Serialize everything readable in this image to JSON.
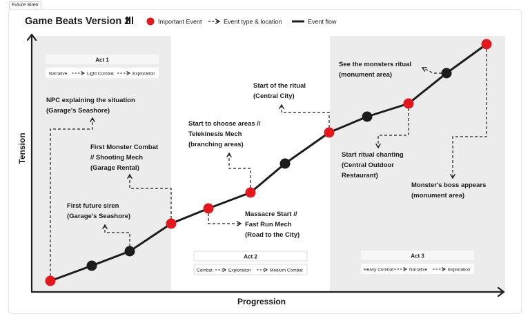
{
  "frame_label": "Future Siren",
  "title": "Game Beats Version 2",
  "title_icon": "bar-chart-icon",
  "legend": [
    {
      "id": "important",
      "label": "Important Event",
      "marker": "red-dot"
    },
    {
      "id": "event-type",
      "label": "Event type & location",
      "marker": "dashed-arrow"
    },
    {
      "id": "flow",
      "label": "Event flow",
      "marker": "solid-line"
    }
  ],
  "axes": {
    "y_label": "Tension",
    "x_label": "Progression"
  },
  "acts": [
    {
      "id": "act1",
      "title": "Act 1",
      "items": [
        "Narrative",
        "Light Combat",
        "Exploration"
      ]
    },
    {
      "id": "act2",
      "title": "Act 2",
      "items": [
        "Combat",
        "Exploration",
        "Medium Combat"
      ]
    },
    {
      "id": "act3",
      "title": "Act 3",
      "items": [
        "Heavy Combat",
        "Narrative",
        "Exploration"
      ]
    }
  ],
  "events": [
    {
      "id": "e1",
      "important": true,
      "label": [
        "NPC explaining the situation",
        "(Garage's Seashore)"
      ]
    },
    {
      "id": "e2",
      "important": false,
      "label": []
    },
    {
      "id": "e3",
      "important": false,
      "label": [
        "First future siren",
        "(Garage's Seashore)"
      ]
    },
    {
      "id": "e4",
      "important": true,
      "label": [
        "First Monster Combat",
        "// Shooting Mech",
        "(Garage Rental)"
      ]
    },
    {
      "id": "e5",
      "important": true,
      "label": [
        "Massacre Start //",
        "Fast Run Mech",
        "(Road to the City)"
      ]
    },
    {
      "id": "e6",
      "important": true,
      "label": [
        "Start to choose areas //",
        "Telekinesis Mech",
        "(branching areas)"
      ]
    },
    {
      "id": "e7",
      "important": false,
      "label": []
    },
    {
      "id": "e8",
      "important": true,
      "label": [
        "Start of the ritual",
        "(Central City)"
      ]
    },
    {
      "id": "e9",
      "important": false,
      "label": []
    },
    {
      "id": "e10",
      "important": true,
      "label": [
        "Start ritual chanting",
        "(Central Outdoor",
        "Restaurant)"
      ]
    },
    {
      "id": "e11",
      "important": false,
      "label": [
        "See the monsters ritual",
        "(monument area)"
      ]
    },
    {
      "id": "e12",
      "important": true,
      "label": [
        "Monster's boss appears",
        "(monument area)"
      ]
    }
  ],
  "colors": {
    "important": "#e2181f",
    "normal": "#1c1c1c",
    "act_shade": "#ececec",
    "line": "#1c1c1c"
  }
}
